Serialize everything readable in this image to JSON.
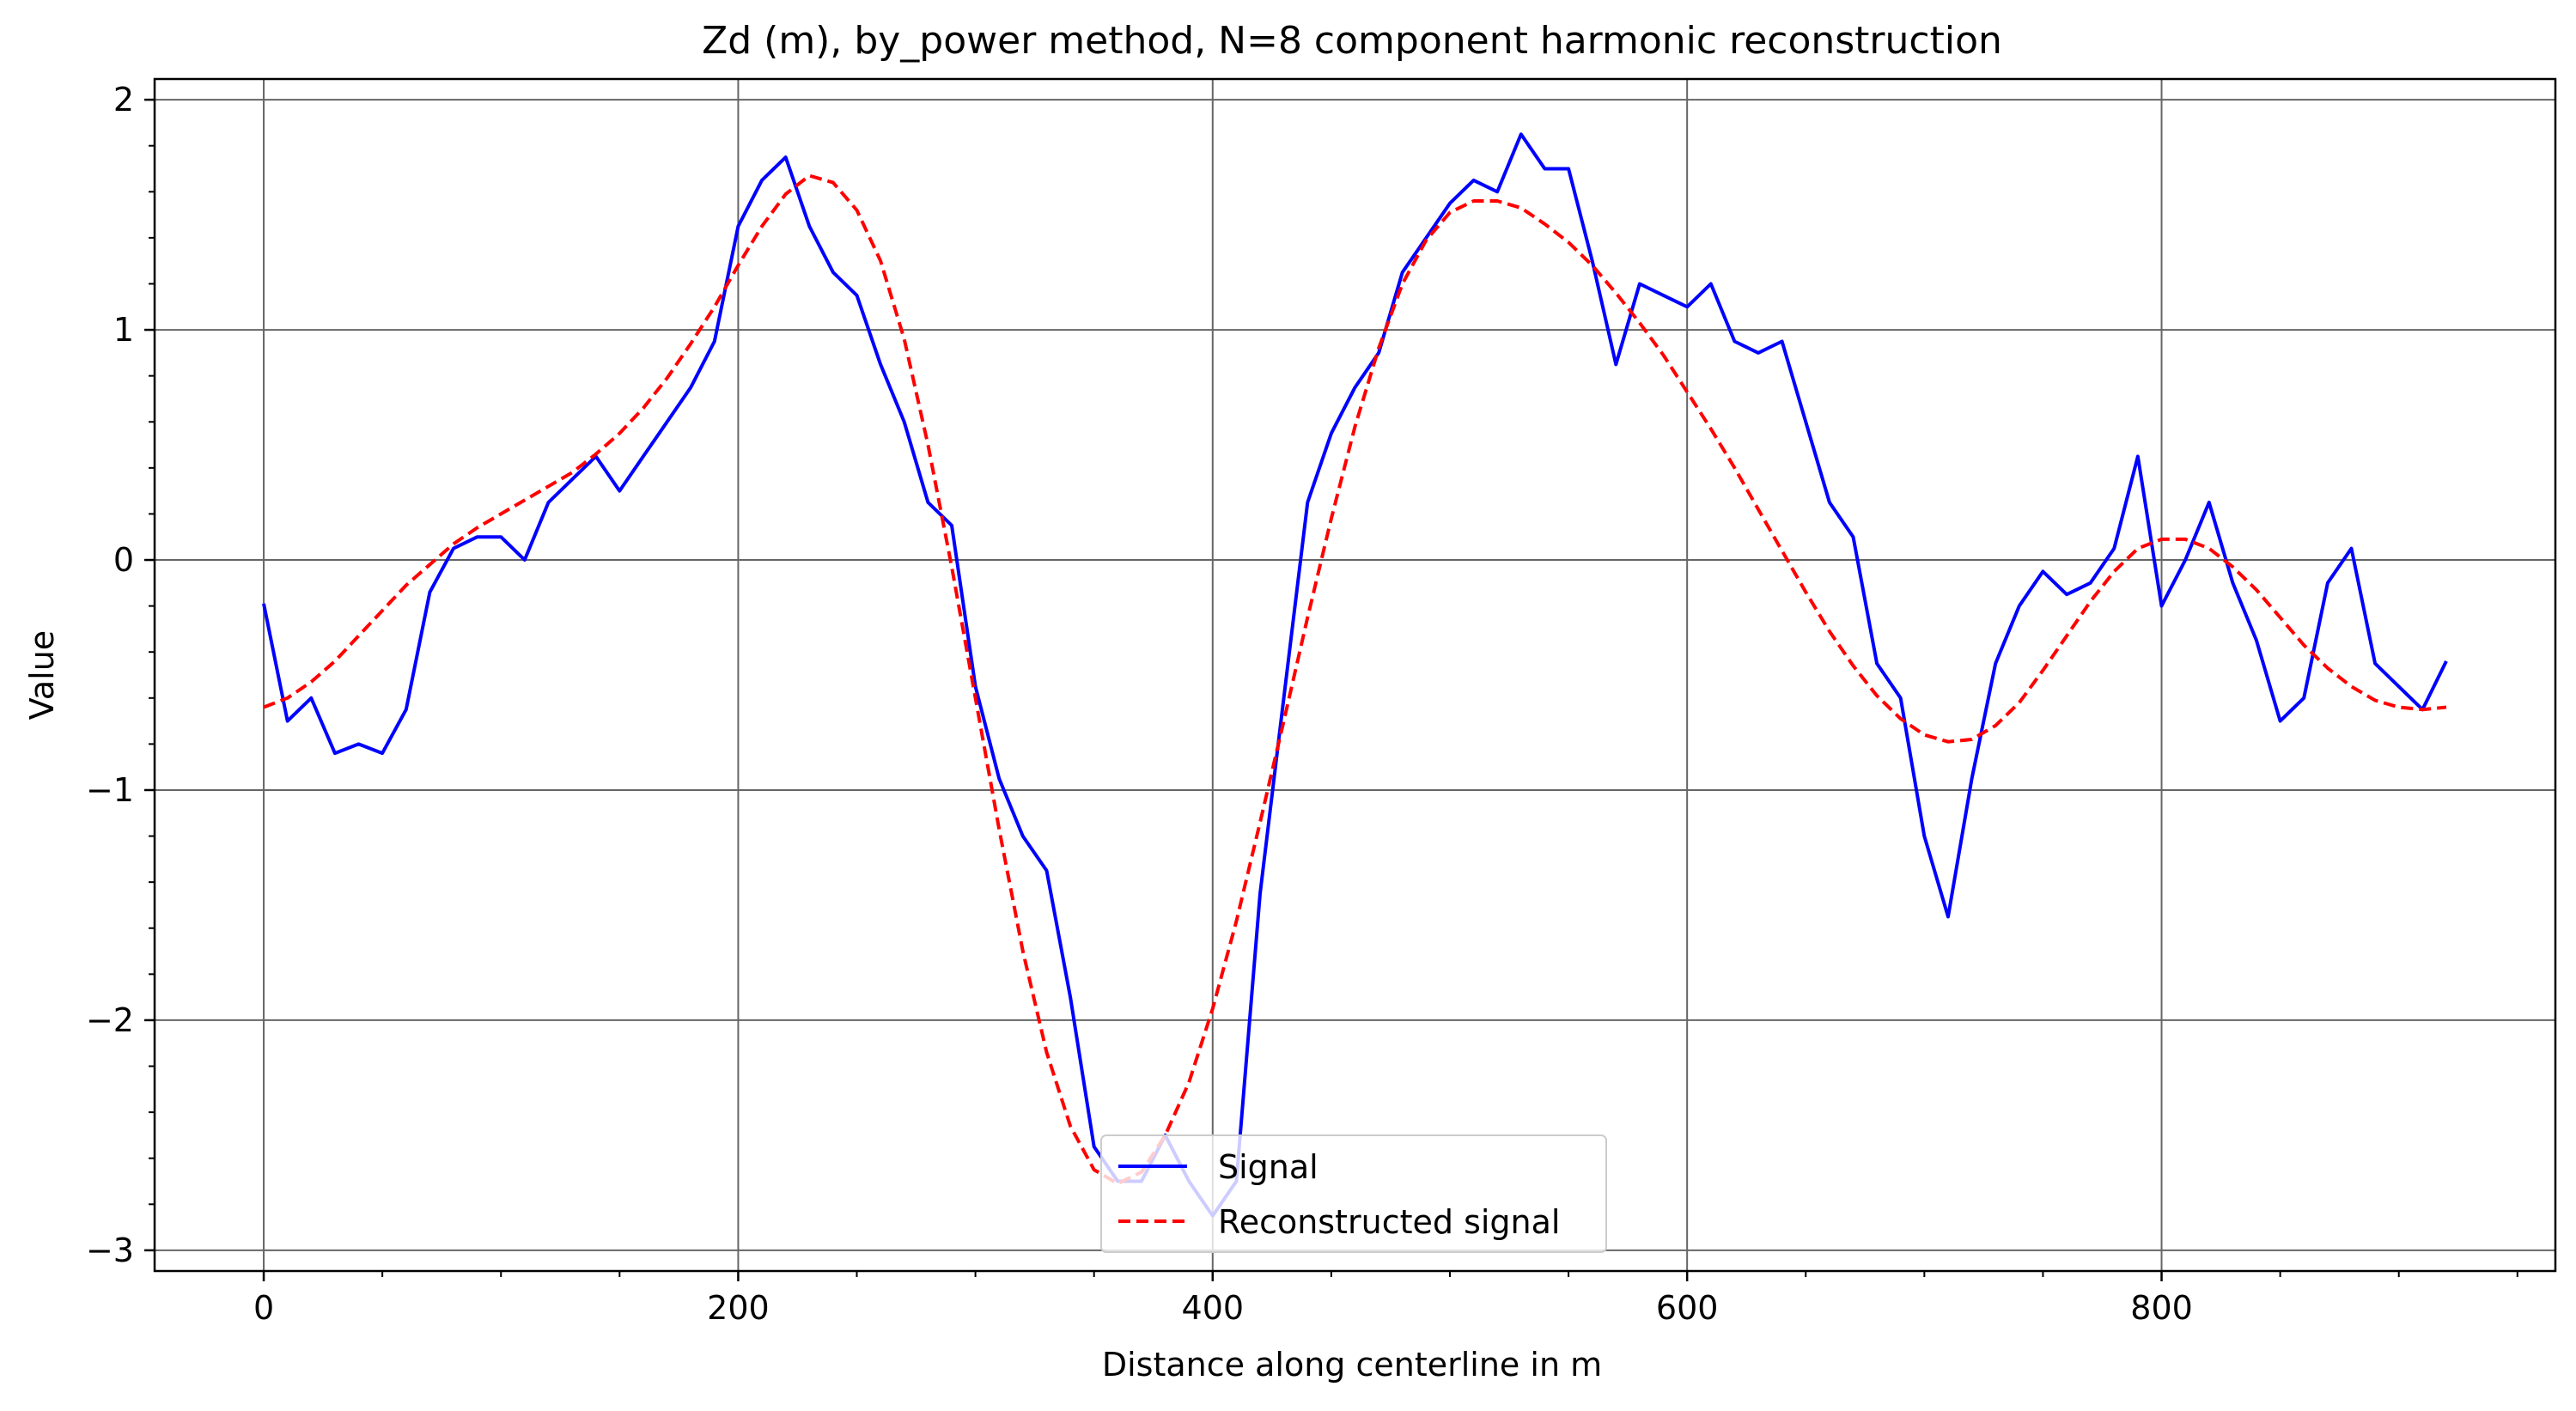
{
  "chart_data": {
    "type": "line",
    "title": "Zd (m), by_power method, N=8 component harmonic reconstruction",
    "xlabel": "Distance along centerline in m",
    "ylabel": "Value",
    "xlim": [
      -46,
      966
    ],
    "ylim": [
      -3.09,
      2.09
    ],
    "x_ticks": [
      0,
      200,
      400,
      600,
      800
    ],
    "y_ticks": [
      -3,
      -2,
      -1,
      0,
      1,
      2
    ],
    "x_tick_labels": [
      "0",
      "200",
      "400",
      "600",
      "800"
    ],
    "y_tick_labels": [
      "−3",
      "−2",
      "−1",
      "0",
      "1",
      "2"
    ],
    "grid": true,
    "legend_position": "lower center",
    "series": [
      {
        "name": "Signal",
        "color": "#0000ff",
        "style": "solid",
        "x": [
          0,
          10,
          20,
          30,
          40,
          50,
          60,
          70,
          80,
          90,
          100,
          110,
          120,
          130,
          140,
          150,
          160,
          170,
          180,
          190,
          200,
          210,
          220,
          230,
          240,
          250,
          260,
          270,
          280,
          290,
          300,
          310,
          320,
          330,
          340,
          350,
          360,
          370,
          380,
          390,
          400,
          410,
          420,
          430,
          440,
          450,
          460,
          470,
          480,
          490,
          500,
          510,
          520,
          530,
          540,
          550,
          560,
          570,
          580,
          590,
          600,
          610,
          620,
          630,
          640,
          650,
          660,
          670,
          680,
          690,
          700,
          710,
          720,
          730,
          740,
          750,
          760,
          770,
          780,
          790,
          800,
          810,
          820,
          830,
          840,
          850,
          860,
          870,
          880,
          890,
          900,
          910,
          920
        ],
        "values": [
          -0.19,
          -0.7,
          -0.6,
          -0.84,
          -0.8,
          -0.84,
          -0.65,
          -0.14,
          0.05,
          0.1,
          0.1,
          0.0,
          0.25,
          0.35,
          0.45,
          0.3,
          0.45,
          0.6,
          0.75,
          0.95,
          1.45,
          1.65,
          1.75,
          1.45,
          1.25,
          1.15,
          0.85,
          0.6,
          0.25,
          0.15,
          -0.55,
          -0.95,
          -1.2,
          -1.35,
          -1.9,
          -2.55,
          -2.7,
          -2.7,
          -2.5,
          -2.7,
          -2.85,
          -2.7,
          -1.45,
          -0.6,
          0.25,
          0.55,
          0.75,
          0.9,
          1.25,
          1.4,
          1.55,
          1.65,
          1.6,
          1.85,
          1.7,
          1.7,
          1.3,
          0.85,
          1.2,
          1.15,
          1.1,
          1.2,
          0.95,
          0.9,
          0.95,
          0.6,
          0.25,
          0.1,
          -0.45,
          -0.6,
          -1.2,
          -1.55,
          -0.95,
          -0.45,
          -0.2,
          -0.05,
          -0.15,
          -0.1,
          0.05,
          0.45,
          -0.2,
          0.0,
          0.25,
          -0.1,
          -0.35,
          -0.7,
          -0.6,
          -0.1,
          0.05,
          -0.45,
          -0.55,
          -0.65,
          -0.44
        ]
      },
      {
        "name": "Reconstructed signal",
        "color": "#ff0000",
        "style": "dashed",
        "x": [
          0,
          10,
          20,
          30,
          40,
          50,
          60,
          70,
          80,
          90,
          100,
          110,
          120,
          130,
          140,
          150,
          160,
          170,
          180,
          190,
          200,
          210,
          220,
          230,
          240,
          250,
          260,
          270,
          280,
          290,
          300,
          310,
          320,
          330,
          340,
          350,
          360,
          370,
          380,
          390,
          400,
          410,
          420,
          430,
          440,
          450,
          460,
          470,
          480,
          490,
          500,
          510,
          520,
          530,
          540,
          550,
          560,
          570,
          580,
          590,
          600,
          610,
          620,
          630,
          640,
          650,
          660,
          670,
          680,
          690,
          700,
          710,
          720,
          730,
          740,
          750,
          760,
          770,
          780,
          790,
          800,
          810,
          820,
          830,
          840,
          850,
          860,
          870,
          880,
          890,
          900,
          910,
          920
        ],
        "values": [
          -0.64,
          -0.6,
          -0.53,
          -0.44,
          -0.33,
          -0.22,
          -0.11,
          -0.02,
          0.07,
          0.14,
          0.2,
          0.26,
          0.32,
          0.38,
          0.46,
          0.55,
          0.66,
          0.79,
          0.94,
          1.1,
          1.28,
          1.45,
          1.59,
          1.67,
          1.64,
          1.52,
          1.3,
          0.96,
          0.5,
          -0.03,
          -0.6,
          -1.17,
          -1.7,
          -2.14,
          -2.46,
          -2.65,
          -2.71,
          -2.66,
          -2.5,
          -2.27,
          -1.95,
          -1.57,
          -1.14,
          -0.7,
          -0.25,
          0.18,
          0.58,
          0.92,
          1.2,
          1.39,
          1.51,
          1.56,
          1.56,
          1.53,
          1.46,
          1.38,
          1.28,
          1.16,
          1.03,
          0.89,
          0.73,
          0.57,
          0.4,
          0.22,
          0.04,
          -0.14,
          -0.31,
          -0.46,
          -0.59,
          -0.69,
          -0.76,
          -0.79,
          -0.78,
          -0.72,
          -0.62,
          -0.48,
          -0.33,
          -0.18,
          -0.05,
          0.05,
          0.09,
          0.09,
          0.05,
          -0.03,
          -0.13,
          -0.25,
          -0.37,
          -0.47,
          -0.55,
          -0.61,
          -0.64,
          -0.65,
          -0.64
        ]
      }
    ]
  }
}
